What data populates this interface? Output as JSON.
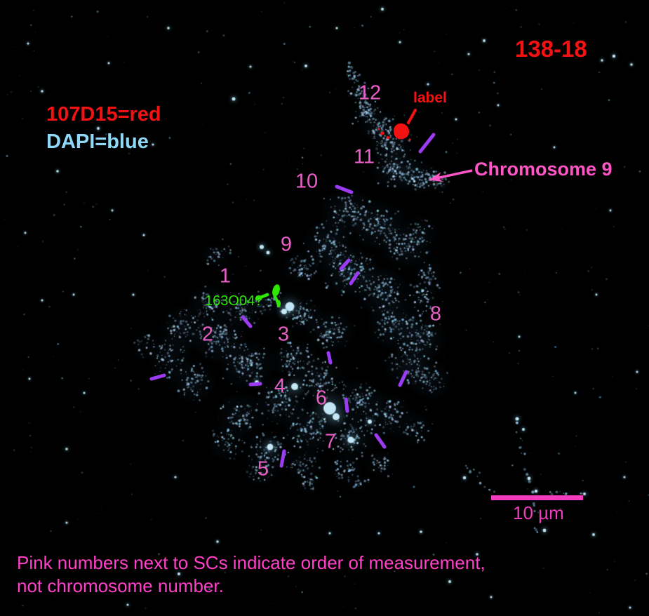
{
  "figure_id": "138-18",
  "legend": {
    "probe_red": "107D15=red",
    "dapi_blue": "DAPI=blue"
  },
  "annotations": {
    "probe_spot_label": "label",
    "chromosome_arrow": "Chromosome 9",
    "green_probe_query": "163O04?",
    "scale_bar_label": "10 µm"
  },
  "measurement_numbers": [
    "1",
    "2",
    "3",
    "4",
    "5",
    "6",
    "7",
    "8",
    "9",
    "10",
    "11",
    "12"
  ],
  "caption": {
    "line1": "Pink numbers next to SCs indicate order of measurement,",
    "line2": "not chromosome number."
  },
  "colors": {
    "probe_red": "#f31212",
    "dapi_text_cyan": "#8fd8f8",
    "number_pink": "#e85fc8",
    "annotation_pink": "#ff55c6",
    "caption_pink": "#ff40c8",
    "scalebar_pink": "#f23cc0",
    "tick_purple": "#9b3bf2",
    "probe_green": "#2ce800",
    "dapi_signal_cyan": "#7ec8f0",
    "background": "#000000"
  }
}
